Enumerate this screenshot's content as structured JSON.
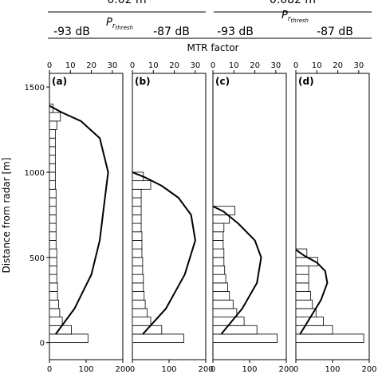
{
  "header": {
    "group_left": "0.02 m",
    "group_right": "0.082 m",
    "pr_thresh_symbol": "P",
    "pr_thresh_subscript": "r",
    "pr_thresh_subsubscript": "thresh",
    "thresholds": [
      "-93 dB",
      "-87 dB",
      "-93 dB",
      "-87 dB"
    ],
    "top_axis_title": "MTR factor"
  },
  "colors": {
    "ink": "#000000",
    "background": "#ffffff"
  },
  "chart_data": [
    {
      "type": "bar",
      "panel_label": "(a)",
      "orientation": "horizontal",
      "ylabel": "Distance from radar [m]",
      "ylim": [
        -100,
        1580
      ],
      "bottom_xlim": [
        0,
        200
      ],
      "top_xlim": [
        0,
        35
      ],
      "bottom_ticks": [
        "0",
        "100",
        "200"
      ],
      "top_ticks": [
        "0",
        "10",
        "20",
        "30"
      ],
      "y_ticks": [
        "0",
        "500",
        "1000",
        "1500"
      ],
      "bin_starts": [
        0,
        50,
        100,
        150,
        200,
        250,
        300,
        350,
        400,
        450,
        500,
        550,
        600,
        650,
        700,
        750,
        800,
        850,
        900,
        950,
        1000,
        1050,
        1100,
        1150,
        1200,
        1250,
        1300,
        1350
      ],
      "bar_values": [
        105,
        60,
        35,
        28,
        25,
        22,
        22,
        20,
        20,
        20,
        20,
        18,
        18,
        18,
        18,
        18,
        18,
        18,
        16,
        16,
        16,
        16,
        16,
        16,
        16,
        20,
        30,
        10
      ],
      "curve": {
        "y": [
          50,
          200,
          400,
          600,
          800,
          1000,
          1200,
          1300,
          1350,
          1390
        ],
        "x": [
          3,
          12,
          20,
          24,
          26,
          28,
          24,
          15,
          6,
          0
        ]
      }
    },
    {
      "type": "bar",
      "panel_label": "(b)",
      "orientation": "horizontal",
      "ylim": [
        -100,
        1580
      ],
      "bottom_xlim": [
        0,
        200
      ],
      "top_xlim": [
        0,
        35
      ],
      "bottom_ticks": [
        "0",
        "100",
        "200"
      ],
      "top_ticks": [
        "0",
        "10",
        "20",
        "30"
      ],
      "bin_starts": [
        0,
        50,
        100,
        150,
        200,
        250,
        300,
        350,
        400,
        450,
        500,
        550,
        600,
        650,
        700,
        750,
        800,
        850,
        900,
        950
      ],
      "bar_values": [
        140,
        80,
        50,
        40,
        35,
        32,
        30,
        30,
        28,
        28,
        26,
        26,
        26,
        24,
        24,
        24,
        24,
        24,
        50,
        30
      ],
      "curve": {
        "y": [
          50,
          200,
          400,
          600,
          750,
          850,
          920,
          970,
          1000
        ],
        "x": [
          5,
          16,
          25,
          30,
          28,
          22,
          14,
          6,
          0
        ]
      }
    },
    {
      "type": "bar",
      "panel_label": "(c)",
      "orientation": "horizontal",
      "ylim": [
        -100,
        1580
      ],
      "bottom_xlim": [
        0,
        200
      ],
      "top_xlim": [
        0,
        35
      ],
      "bottom_ticks": [
        "0",
        "100",
        "200"
      ],
      "top_ticks": [
        "0",
        "10",
        "20",
        "30"
      ],
      "bin_starts": [
        0,
        50,
        100,
        150,
        200,
        250,
        300,
        350,
        400,
        450,
        500,
        550,
        600,
        650,
        700,
        750
      ],
      "bar_values": [
        175,
        120,
        85,
        65,
        55,
        45,
        40,
        35,
        32,
        30,
        30,
        28,
        28,
        30,
        45,
        60
      ],
      "curve": {
        "y": [
          50,
          200,
          350,
          500,
          600,
          700,
          770,
          800
        ],
        "x": [
          4,
          14,
          21,
          23,
          20,
          12,
          5,
          0
        ]
      }
    },
    {
      "type": "bar",
      "panel_label": "(d)",
      "orientation": "horizontal",
      "ylim": [
        -100,
        1580
      ],
      "bottom_xlim": [
        0,
        200
      ],
      "top_xlim": [
        0,
        35
      ],
      "bottom_ticks": [
        "0",
        "100",
        "200"
      ],
      "top_ticks": [
        "0",
        "10",
        "20",
        "30"
      ],
      "bin_starts": [
        0,
        50,
        100,
        150,
        200,
        250,
        300,
        350,
        400,
        450,
        500
      ],
      "bar_values": [
        185,
        100,
        75,
        55,
        45,
        40,
        35,
        35,
        35,
        60,
        30
      ],
      "curve": {
        "y": [
          50,
          150,
          250,
          350,
          420,
          470,
          510,
          545
        ],
        "x": [
          2,
          7,
          12,
          15,
          14,
          10,
          4,
          0
        ]
      }
    }
  ]
}
